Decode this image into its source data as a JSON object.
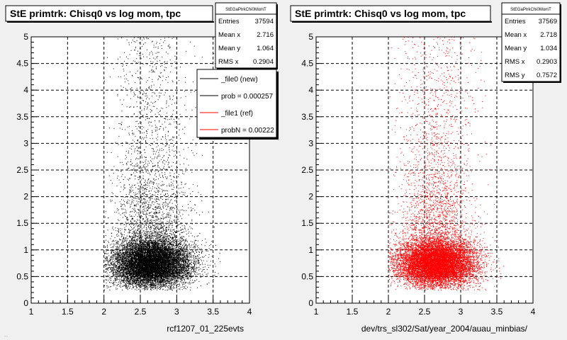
{
  "footer_text": "...",
  "colors": {
    "left_series": "#000000",
    "right_series": "#ff0000",
    "frame_bg": "#ffffff",
    "canvas_bg": "#f0f0f0"
  },
  "chart_data": [
    {
      "type": "scatter",
      "title": "StE primtrk: Chisq0 vs log mom, tpc",
      "xlabel": "rcf1207_01_225evts",
      "ylabel": "",
      "xlim": [
        1,
        4
      ],
      "ylim": [
        0,
        5
      ],
      "xticks": [
        "1",
        "1.5",
        "2",
        "2.5",
        "3",
        "3.5",
        "4"
      ],
      "yticks": [
        "0",
        "0.5",
        "1",
        "1.5",
        "2",
        "2.5",
        "3",
        "3.5",
        "4",
        "4.5",
        "5"
      ],
      "grid": true,
      "marker_color": "#000000",
      "density": {
        "x_range": [
          2.0,
          3.6
        ],
        "x_peak": 2.65,
        "y_peak": 0.75,
        "y_tail_max": 5
      },
      "stats": {
        "name": "StEGaPtrkChi0MomT",
        "rows": [
          {
            "label": "Entries",
            "value": "37594"
          },
          {
            "label": "Mean x",
            "value": "2.716"
          },
          {
            "label": "Mean y",
            "value": "1.064"
          },
          {
            "label": "RMS x",
            "value": "0.2904"
          }
        ]
      },
      "legend": {
        "placement": "top-right",
        "entries": [
          {
            "label": "_file0 (new)",
            "color": "#000000"
          },
          {
            "label": "prob = 0.000257",
            "color": "#000000"
          },
          {
            "label": "_file1 (ref)",
            "color": "#ff0000"
          },
          {
            "label": "probN = 0.00222",
            "color": "#ff0000"
          }
        ]
      }
    },
    {
      "type": "scatter",
      "title": "StE primtrk: Chisq0 vs log mom, tpc",
      "xlabel": "dev/trs_sl302/Sat/year_2004/auau_minbias/",
      "ylabel": "",
      "xlim": [
        1,
        4
      ],
      "ylim": [
        0,
        5
      ],
      "xticks": [
        "1",
        "1.5",
        "2",
        "2.5",
        "3",
        "3.5",
        "4"
      ],
      "yticks": [
        "0",
        "0.5",
        "1",
        "1.5",
        "2",
        "2.5",
        "3",
        "3.5",
        "4",
        "4.5",
        "5"
      ],
      "grid": true,
      "marker_color": "#ff0000",
      "density": {
        "x_range": [
          2.0,
          3.6
        ],
        "x_peak": 2.65,
        "y_peak": 0.75,
        "y_tail_max": 5
      },
      "stats": {
        "name": "StEGaPtrkChi0MomT",
        "rows": [
          {
            "label": "Entries",
            "value": "37569"
          },
          {
            "label": "Mean x",
            "value": "2.718"
          },
          {
            "label": "Mean y",
            "value": "1.034"
          },
          {
            "label": "RMS x",
            "value": "0.2903"
          },
          {
            "label": "RMS y",
            "value": "0.7572"
          }
        ]
      }
    }
  ]
}
